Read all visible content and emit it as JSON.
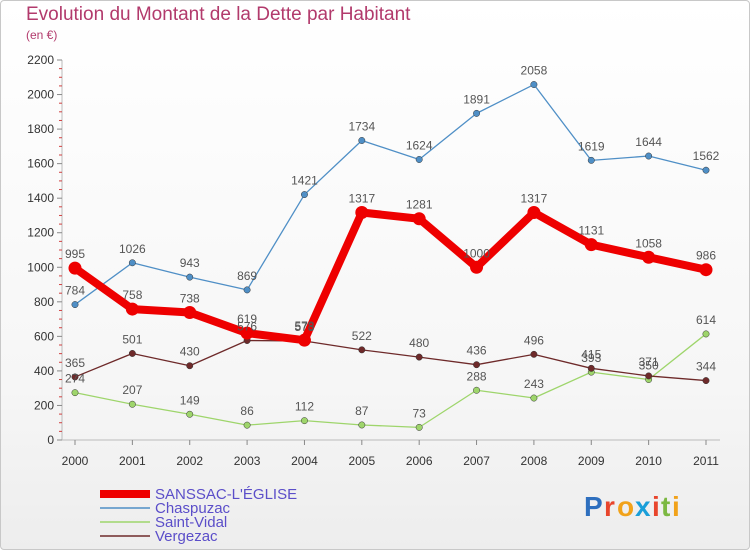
{
  "header": {
    "title": "Evolution du Montant de la Dette par Habitant",
    "subtitle": "(en €)"
  },
  "logo": {
    "letters": [
      "P",
      "r",
      "o",
      "x",
      "i",
      "t",
      "i"
    ],
    "colors": [
      "#2e6fbe",
      "#e8452c",
      "#f1a21a",
      "#1a9fd9",
      "#e8452c",
      "#7cb842",
      "#f1a21a"
    ]
  },
  "chart_data": {
    "type": "line",
    "title": "Evolution du Montant de la Dette par Habitant",
    "subtitle": "(en €)",
    "xlabel": "",
    "ylabel": "",
    "categories": [
      "2000",
      "2001",
      "2002",
      "2003",
      "2004",
      "2005",
      "2006",
      "2007",
      "2008",
      "2009",
      "2010",
      "2011"
    ],
    "ylim": [
      0,
      2200
    ],
    "yticks": [
      0,
      200,
      400,
      600,
      800,
      1000,
      1200,
      1400,
      1600,
      1800,
      2000,
      2200
    ],
    "grid": false,
    "legend_position": "bottom-left",
    "series": [
      {
        "name": "Chaspuzac",
        "color": "#4f8fc6",
        "values": [
          784,
          1026,
          943,
          869,
          1421,
          1734,
          1624,
          1891,
          2058,
          1619,
          1644,
          1562
        ]
      },
      {
        "name": "Saint-Vidal",
        "color": "#9ed56b",
        "values": [
          274,
          207,
          149,
          86,
          112,
          87,
          73,
          288,
          243,
          393,
          350,
          614
        ]
      },
      {
        "name": "Vergezac",
        "color": "#6e2a2a",
        "values": [
          365,
          501,
          430,
          576,
          573,
          522,
          480,
          436,
          496,
          415,
          371,
          344
        ]
      },
      {
        "name": "SANSSAC-L'ÉGLISE",
        "color": "#ee0000",
        "values": [
          995,
          758,
          738,
          619,
          578,
          1317,
          1281,
          1000,
          1317,
          1131,
          1058,
          986
        ]
      }
    ]
  }
}
